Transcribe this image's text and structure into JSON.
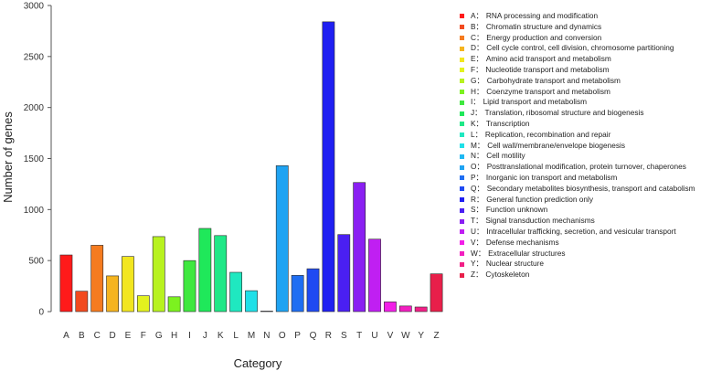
{
  "chart_data": {
    "type": "bar",
    "title": "",
    "xlabel": "Category",
    "ylabel": "Number of genes",
    "ylim": [
      0,
      3000
    ],
    "yticks": [
      0,
      500,
      1000,
      1500,
      2000,
      2500,
      3000
    ],
    "categories": [
      "A",
      "B",
      "C",
      "D",
      "E",
      "F",
      "G",
      "H",
      "I",
      "J",
      "K",
      "L",
      "M",
      "N",
      "O",
      "P",
      "Q",
      "R",
      "S",
      "T",
      "U",
      "V",
      "W",
      "Y",
      "Z"
    ],
    "values": [
      555,
      200,
      650,
      350,
      540,
      155,
      735,
      145,
      500,
      815,
      745,
      385,
      205,
      5,
      1430,
      355,
      420,
      2840,
      755,
      1265,
      710,
      95,
      55,
      45,
      370
    ],
    "colors": [
      "#ff1a1a",
      "#f24a1f",
      "#f57b1f",
      "#f5b41f",
      "#f2e61f",
      "#e3f21f",
      "#b8f21f",
      "#7cf21f",
      "#3fe83f",
      "#1fe85a",
      "#1fe887",
      "#1fe8c0",
      "#1fe0e8",
      "#1fb8f2",
      "#1fa3f2",
      "#1f6ef2",
      "#1f4af2",
      "#1f1ff2",
      "#4a1ff2",
      "#8a1ff2",
      "#c01ff2",
      "#f21fe8",
      "#f21fc0",
      "#f21f87",
      "#e81f4a"
    ],
    "legend": [
      {
        "code": "A",
        "label": "RNA processing and modification"
      },
      {
        "code": "B",
        "label": "Chromatin structure and dynamics"
      },
      {
        "code": "C",
        "label": "Energy production and conversion"
      },
      {
        "code": "D",
        "label": "Cell cycle control, cell division, chromosome partitioning"
      },
      {
        "code": "E",
        "label": "Amino acid transport and metabolism"
      },
      {
        "code": "F",
        "label": "Nucleotide transport and metabolism"
      },
      {
        "code": "G",
        "label": "Carbohydrate transport and metabolism"
      },
      {
        "code": "H",
        "label": "Coenzyme transport and metabolism"
      },
      {
        "code": "I",
        "label": "Lipid transport and metabolism"
      },
      {
        "code": "J",
        "label": "Translation, ribosomal structure and biogenesis"
      },
      {
        "code": "K",
        "label": "Transcription"
      },
      {
        "code": "L",
        "label": "Replication, recombination and repair"
      },
      {
        "code": "M",
        "label": "Cell wall/membrane/envelope biogenesis"
      },
      {
        "code": "N",
        "label": "Cell motility"
      },
      {
        "code": "O",
        "label": "Posttranslational modification, protein turnover, chaperones"
      },
      {
        "code": "P",
        "label": "Inorganic ion transport and metabolism"
      },
      {
        "code": "Q",
        "label": "Secondary metabolites biosynthesis, transport and catabolism"
      },
      {
        "code": "R",
        "label": "General function prediction only"
      },
      {
        "code": "S",
        "label": "Function unknown"
      },
      {
        "code": "T",
        "label": "Signal transduction mechanisms"
      },
      {
        "code": "U",
        "label": "Intracellular trafficking, secretion, and vesicular transport"
      },
      {
        "code": "V",
        "label": "Defense mechanisms"
      },
      {
        "code": "W",
        "label": "Extracellular structures"
      },
      {
        "code": "Y",
        "label": "Nuclear structure"
      },
      {
        "code": "Z",
        "label": "Cytoskeleton"
      }
    ]
  }
}
